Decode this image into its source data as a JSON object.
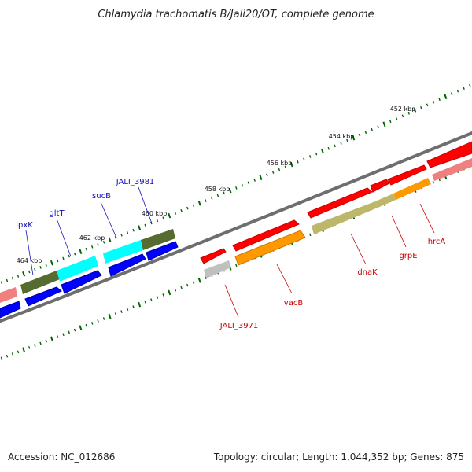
{
  "title": "Chlamydia trachomatis B/Jali20/OT, complete genome",
  "footer": {
    "accession": "Accession: NC_012686",
    "summary": "Topology: circular; Length: 1,044,352 bp; Genes: 875"
  },
  "ruler": [
    {
      "label": "452 kbp"
    },
    {
      "label": "454 kbp"
    },
    {
      "label": "456 kbp"
    },
    {
      "label": "458 kbp"
    },
    {
      "label": "460 kbp"
    },
    {
      "label": "462 kbp"
    },
    {
      "label": "464 kbp"
    }
  ],
  "gene_labels": [
    {
      "text": "lpxK",
      "color": "#1010c0"
    },
    {
      "text": "gltT",
      "color": "#1010c0"
    },
    {
      "text": "sucB",
      "color": "#1010c0"
    },
    {
      "text": "JALI_3981",
      "color": "#1010c0"
    },
    {
      "text": "JALI_3971",
      "color": "#cc0000"
    },
    {
      "text": "vacB",
      "color": "#cc0000"
    },
    {
      "text": "dnaK",
      "color": "#cc0000"
    },
    {
      "text": "grpE",
      "color": "#cc0000"
    },
    {
      "text": "hrcA",
      "color": "#cc0000"
    }
  ],
  "colors": {
    "forward_cds": "#ff0000",
    "reverse_cds": "#0000ff",
    "backbone": "#808080",
    "ticks": "#006600",
    "cog_orange": "#ff9900",
    "cog_olive": "#bdb76b",
    "cog_darkolive": "#556b2f",
    "cog_cyan": "#00ffff",
    "cog_grey": "#c0c0c0",
    "cog_pink": "#f08080"
  }
}
